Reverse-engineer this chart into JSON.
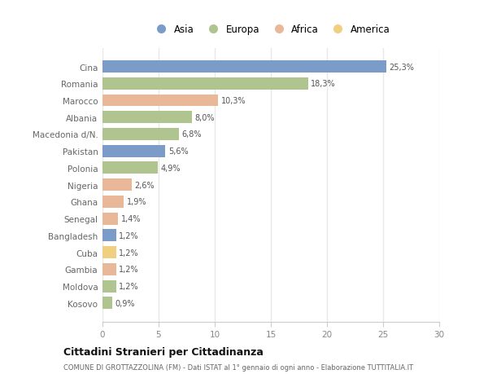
{
  "countries": [
    "Cina",
    "Romania",
    "Marocco",
    "Albania",
    "Macedonia d/N.",
    "Pakistan",
    "Polonia",
    "Nigeria",
    "Ghana",
    "Senegal",
    "Bangladesh",
    "Cuba",
    "Gambia",
    "Moldova",
    "Kosovo"
  ],
  "values": [
    25.3,
    18.3,
    10.3,
    8.0,
    6.8,
    5.6,
    4.9,
    2.6,
    1.9,
    1.4,
    1.2,
    1.2,
    1.2,
    1.2,
    0.9
  ],
  "labels": [
    "25,3%",
    "18,3%",
    "10,3%",
    "8,0%",
    "6,8%",
    "5,6%",
    "4,9%",
    "2,6%",
    "1,9%",
    "1,4%",
    "1,2%",
    "1,2%",
    "1,2%",
    "1,2%",
    "0,9%"
  ],
  "continents": [
    "Asia",
    "Europa",
    "Africa",
    "Europa",
    "Europa",
    "Asia",
    "Europa",
    "Africa",
    "Africa",
    "Africa",
    "Asia",
    "America",
    "Africa",
    "Europa",
    "Europa"
  ],
  "colors": {
    "Asia": "#7b9cc8",
    "Europa": "#b0c490",
    "Africa": "#e8b898",
    "America": "#f0d080"
  },
  "legend_order": [
    "Asia",
    "Europa",
    "Africa",
    "America"
  ],
  "title": "Cittadini Stranieri per Cittadinanza",
  "subtitle": "COMUNE DI GROTTAZZOLINA (FM) - Dati ISTAT al 1° gennaio di ogni anno - Elaborazione TUTTITALIA.IT",
  "xlim": [
    0,
    30
  ],
  "xticks": [
    0,
    5,
    10,
    15,
    20,
    25,
    30
  ],
  "background_color": "#ffffff",
  "grid_color": "#e8e8e8",
  "bar_height": 0.72
}
